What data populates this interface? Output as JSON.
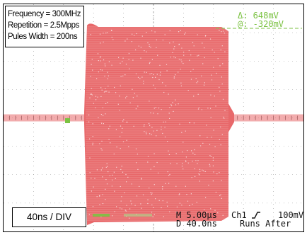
{
  "info": {
    "frequency": "Frequency = 300MHz",
    "repetition": "Repetition = 2.5Mpps",
    "pulse_width": "Pules Width = 200ns"
  },
  "timebase_label": "40ns / DIV",
  "cursor_readout": {
    "delta": "Δ: 648mV",
    "at": "@: -320mV"
  },
  "status": {
    "horizontal": "M 5.00µs",
    "delay": "D 40.0ns",
    "channel": "Ch1",
    "trigger_icon": "rising-edge-icon",
    "trigger_level": "100mV",
    "trigger_mode": "Runs After"
  },
  "colors": {
    "background": "#ffffff",
    "grid": "#9a9a9a",
    "waveform": "#e8686a",
    "cursor": "#7bc242",
    "text": "#111111"
  }
}
